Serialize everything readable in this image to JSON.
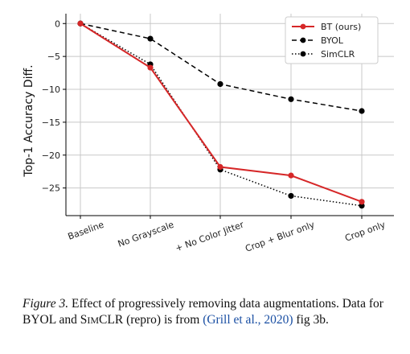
{
  "chart_data": {
    "type": "line",
    "categories": [
      "Baseline",
      "No Grayscale",
      "+ No Color Jitter",
      "Crop + Blur only",
      "Crop only"
    ],
    "ylabel": "Top-1 Accuracy Diff.",
    "ylim": [
      -29.2,
      1.5
    ],
    "yticks": [
      0,
      -5,
      -10,
      -15,
      -20,
      -25
    ],
    "ytick_labels": [
      "0",
      "−5",
      "−10",
      "−15",
      "−20",
      "−25"
    ],
    "grid": true,
    "legend_position": "top-right",
    "series": [
      {
        "name": "BT (ours)",
        "values": [
          0,
          -6.7,
          -21.8,
          -23.1,
          -27.1
        ],
        "color": "#d62728",
        "line": "solid"
      },
      {
        "name": "BYOL",
        "values": [
          0,
          -2.3,
          -9.2,
          -11.5,
          -13.3
        ],
        "color": "#000000",
        "line": "dashed"
      },
      {
        "name": "SimCLR",
        "values": [
          0,
          -6.2,
          -22.2,
          -26.2,
          -27.7
        ],
        "color": "#000000",
        "line": "dotted"
      }
    ]
  },
  "caption": {
    "fig_label": "Figure 3.",
    "text_1": " Effect of progressively removing data augmentations. Data for BYOL and S",
    "simclr_small": "IM",
    "text_2": "CLR (repro) is from ",
    "ref": "(Grill et al., 2020)",
    "text_3": " fig 3b."
  }
}
